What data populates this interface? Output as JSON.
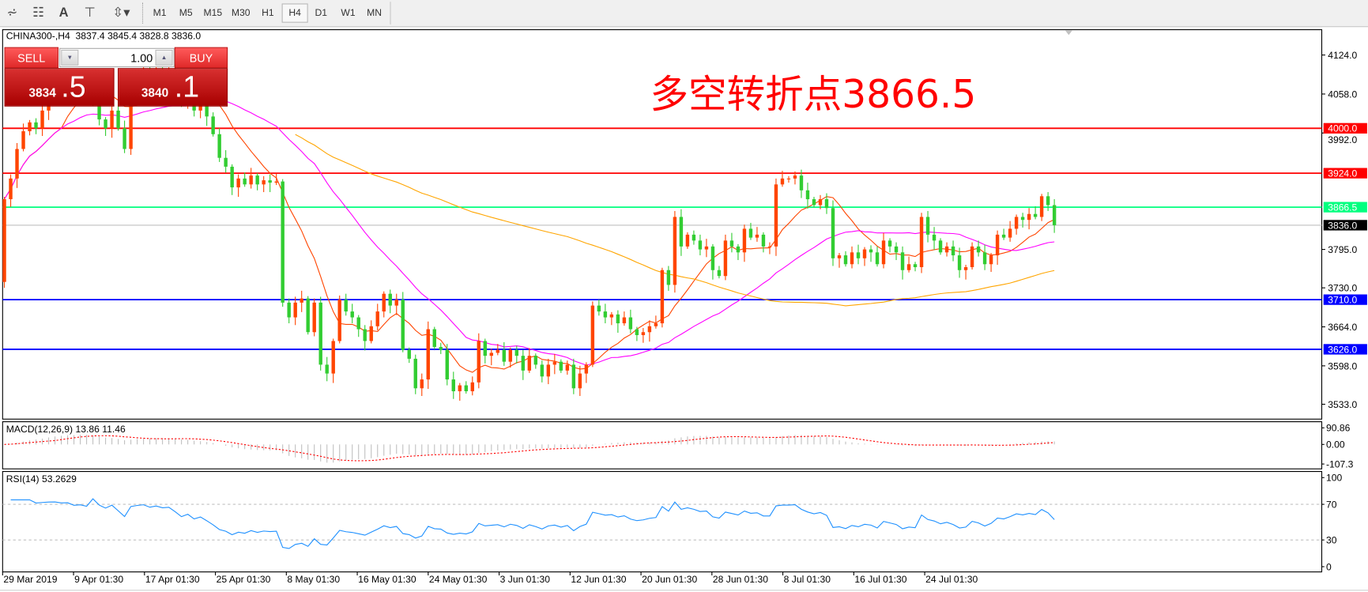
{
  "toolbar": {
    "icons": [
      "elliott-wave-icon",
      "fibonacci-fan-icon",
      "text-icon",
      "text-label-icon",
      "arrows-icon"
    ],
    "timeframes": [
      "M1",
      "M5",
      "M15",
      "M30",
      "H1",
      "H4",
      "D1",
      "W1",
      "MN"
    ],
    "active_timeframe": "H4"
  },
  "chart_header": "CHINA300-,H4  3837.4 3845.4 3828.8 3836.0",
  "trade_panel": {
    "sell_label": "SELL",
    "buy_label": "BUY",
    "lot": "1.00",
    "sell_price_main": "3834",
    "sell_price_frac": ".5",
    "buy_price_main": "3840",
    "buy_price_frac": ".1"
  },
  "annotation": "多空转折点3866.5",
  "colors": {
    "bull": "#ff4500",
    "bear": "#32cd32",
    "resistance": "#ff0000",
    "pivot": "#00ff7f",
    "support": "#0000ff",
    "last": "#000000",
    "ma_fast": "#ff4500",
    "ma_mid": "#ff00ff",
    "ma_slow": "#ffa500",
    "rsi": "#1e90ff",
    "macd_signal": "#ff0000",
    "macd_hist": "#c0c0c0"
  },
  "chart_data": {
    "type": "candlestick",
    "symbol": "CHINA300-",
    "timeframe": "H4",
    "ylim": [
      3520,
      4150
    ],
    "y_ticks": [
      "4124.0",
      "4058.0",
      "3992.0",
      "3795.0",
      "3730.0",
      "3664.0",
      "3598.0",
      "3533.0"
    ],
    "x_labels": [
      "29 Mar 2019",
      "9 Apr 01:30",
      "17 Apr 01:30",
      "25 Apr 01:30",
      "8 May 01:30",
      "16 May 01:30",
      "24 May 01:30",
      "3 Jun 01:30",
      "12 Jun 01:30",
      "20 Jun 01:30",
      "28 Jun 01:30",
      "8 Jul 01:30",
      "16 Jul 01:30",
      "24 Jul 01:30"
    ],
    "first_open": 3740,
    "closes": [
      3880,
      3915,
      3965,
      3995,
      4010,
      4000,
      4030,
      4060,
      4075,
      4070,
      4080,
      4065,
      4090,
      4080,
      4045,
      4015,
      4000,
      4030,
      4000,
      3965,
      4075,
      4090,
      4100,
      4085,
      4100,
      4090,
      4095,
      4070,
      4040,
      4060,
      4030,
      4045,
      4020,
      3990,
      3950,
      3935,
      3900,
      3915,
      3905,
      3920,
      3905,
      3912,
      3908,
      3910,
      3705,
      3680,
      3705,
      3712,
      3655,
      3705,
      3600,
      3585,
      3640,
      3710,
      3690,
      3680,
      3660,
      3640,
      3665,
      3690,
      3720,
      3700,
      3710,
      3625,
      3610,
      3560,
      3575,
      3660,
      3630,
      3625,
      3575,
      3555,
      3565,
      3555,
      3570,
      3640,
      3615,
      3620,
      3625,
      3605,
      3625,
      3615,
      3590,
      3615,
      3600,
      3580,
      3600,
      3605,
      3590,
      3600,
      3560,
      3585,
      3600,
      3700,
      3690,
      3680,
      3685,
      3670,
      3680,
      3660,
      3650,
      3655,
      3665,
      3670,
      3760,
      3735,
      3850,
      3800,
      3820,
      3810,
      3795,
      3800,
      3760,
      3750,
      3810,
      3800,
      3790,
      3830,
      3815,
      3820,
      3800,
      3800,
      3905,
      3915,
      3915,
      3920,
      3895,
      3880,
      3870,
      3880,
      3865,
      3780,
      3785,
      3770,
      3790,
      3780,
      3795,
      3790,
      3770,
      3810,
      3800,
      3790,
      3760,
      3770,
      3765,
      3850,
      3820,
      3810,
      3790,
      3800,
      3785,
      3760,
      3765,
      3800,
      3790,
      3770,
      3785,
      3820,
      3815,
      3830,
      3850,
      3845,
      3855,
      3850,
      3885,
      3870,
      3836
    ],
    "levels": [
      {
        "price": 4000.0,
        "label": "4000.0",
        "kind": "resistance"
      },
      {
        "price": 3924.0,
        "label": "3924.0",
        "kind": "resistance"
      },
      {
        "price": 3866.5,
        "label": "3866.5",
        "kind": "pivot"
      },
      {
        "price": 3836.0,
        "label": "3836.0",
        "kind": "last"
      },
      {
        "price": 3710.0,
        "label": "3710.0",
        "kind": "support"
      },
      {
        "price": 3626.0,
        "label": "3626.0",
        "kind": "support"
      }
    ],
    "macd": {
      "label": "MACD(12,26,9) 13.86 11.46",
      "ticks": [
        "90.86",
        "0.00",
        "-107.3"
      ],
      "range": [
        -107.3,
        90.86
      ]
    },
    "rsi": {
      "label": "RSI(14) 53.2629",
      "ticks": [
        "100",
        "70",
        "30",
        "0"
      ],
      "levels": [
        70,
        30
      ]
    }
  }
}
